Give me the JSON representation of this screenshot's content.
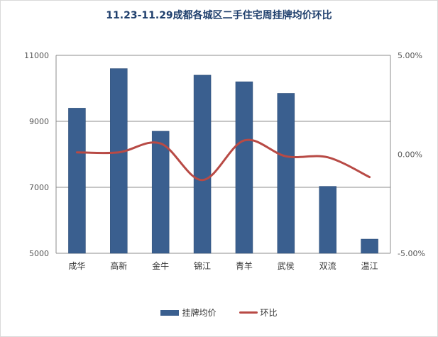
{
  "chart_data": {
    "type": "bar",
    "title": "11.23-11.29成都各城区二手住宅周挂牌均价环比",
    "categories": [
      "成华",
      "高新",
      "金牛",
      "锦江",
      "青羊",
      "武侯",
      "双流",
      "温江"
    ],
    "series": [
      {
        "name": "挂牌均价",
        "type": "bar",
        "axis": "left",
        "color": "#3a5f8f",
        "values": [
          9400,
          10600,
          8700,
          10400,
          10200,
          9850,
          7030,
          5430
        ]
      },
      {
        "name": "环比",
        "type": "line",
        "axis": "right",
        "color": "#b84a45",
        "values": [
          0.1,
          0.1,
          0.55,
          -1.3,
          0.7,
          -0.1,
          -0.15,
          -1.15
        ]
      }
    ],
    "left_axis": {
      "min": 5000,
      "max": 11000,
      "ticks": [
        "5000",
        "7000",
        "9000",
        "11000"
      ],
      "tick_values": [
        5000,
        7000,
        9000,
        11000
      ]
    },
    "right_axis": {
      "min": -5,
      "max": 5,
      "unit": "%",
      "ticks": [
        "-5.00%",
        "0.00%",
        "5.00%"
      ],
      "tick_values": [
        -5,
        0,
        5
      ]
    },
    "grid": true,
    "legend_position": "bottom"
  }
}
